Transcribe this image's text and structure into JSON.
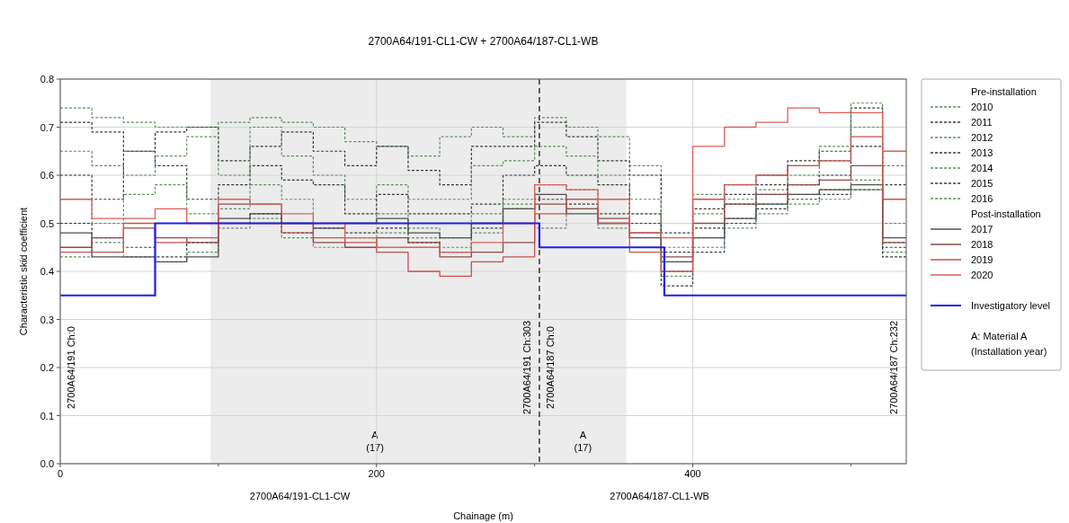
{
  "chart_data": {
    "type": "step",
    "title": "2700A64/191-CL1-CW + 2700A64/187-CL1-WB",
    "xlabel": "Chainage (m)",
    "ylabel": "Characteristic skid coefficient",
    "legend_title": "Pre-installation",
    "x": [
      0,
      20,
      40,
      60,
      80,
      100,
      120,
      140,
      160,
      180,
      200,
      220,
      240,
      260,
      280,
      300,
      320,
      340,
      360,
      380,
      400,
      420,
      440,
      460,
      480,
      500,
      520,
      535
    ],
    "xlim": [
      0,
      535
    ],
    "xticks": [
      0,
      {
        "value": 100,
        "label": null
      },
      200,
      {
        "value": 300,
        "label": null
      },
      400,
      {
        "value": 500,
        "label": null
      }
    ],
    "ylim": [
      0,
      0.8
    ],
    "yticks": [
      {
        "value": 0,
        "label": "0.0"
      },
      0.1,
      0.2,
      0.3,
      0.4,
      0.5,
      0.6,
      0.7,
      0.8
    ],
    "grid": true,
    "legend": "right",
    "series": [
      {
        "name": "2010",
        "color": "#5f8f5f",
        "line_style": "dotted",
        "values": [
          0.74,
          0.72,
          0.71,
          0.7,
          0.7,
          0.71,
          0.72,
          0.71,
          0.7,
          0.67,
          0.66,
          0.64,
          0.68,
          0.7,
          0.68,
          0.72,
          0.7,
          0.68,
          0.62,
          0.45,
          0.56,
          0.58,
          0.6,
          0.62,
          0.66,
          0.7,
          0.62,
          0.62
        ]
      },
      {
        "name": "2011",
        "color": "#3a3a3a",
        "line_style": "dotted",
        "values": [
          0.71,
          0.69,
          0.65,
          0.69,
          0.7,
          0.63,
          0.66,
          0.69,
          0.65,
          0.62,
          0.66,
          0.61,
          0.58,
          0.66,
          0.66,
          0.71,
          0.68,
          0.63,
          0.6,
          0.48,
          0.53,
          0.56,
          0.58,
          0.63,
          0.65,
          0.74,
          0.58,
          0.58
        ]
      },
      {
        "name": "2012",
        "color": "#5f8f5f",
        "line_style": "dotted",
        "values": [
          0.65,
          0.62,
          0.6,
          0.64,
          0.68,
          0.6,
          0.7,
          0.64,
          0.6,
          0.55,
          0.58,
          0.55,
          0.55,
          0.62,
          0.63,
          0.66,
          0.64,
          0.6,
          0.55,
          0.39,
          0.52,
          0.55,
          0.57,
          0.6,
          0.63,
          0.75,
          0.5,
          0.5
        ]
      },
      {
        "name": "2013",
        "color": "#3a3a3a",
        "line_style": "dotted",
        "values": [
          0.6,
          0.55,
          0.65,
          0.62,
          0.55,
          0.58,
          0.62,
          0.59,
          0.58,
          0.52,
          0.56,
          0.52,
          0.52,
          0.54,
          0.6,
          0.62,
          0.6,
          0.58,
          0.52,
          0.37,
          0.49,
          0.54,
          0.56,
          0.58,
          0.6,
          0.66,
          0.45,
          0.45
        ]
      },
      {
        "name": "2014",
        "color": "#5f8f5f",
        "line_style": "dotted",
        "values": [
          0.55,
          0.5,
          0.56,
          0.58,
          0.52,
          0.53,
          0.58,
          0.55,
          0.5,
          0.5,
          0.52,
          0.49,
          0.47,
          0.48,
          0.55,
          0.58,
          0.57,
          0.55,
          0.52,
          0.4,
          0.47,
          0.51,
          0.54,
          0.56,
          0.57,
          0.59,
          0.44,
          0.44
        ]
      },
      {
        "name": "2015",
        "color": "#3a3a3a",
        "line_style": "dotted",
        "values": [
          0.5,
          0.47,
          0.45,
          0.43,
          0.46,
          0.5,
          0.52,
          0.48,
          0.49,
          0.48,
          0.49,
          0.46,
          0.44,
          0.49,
          0.53,
          0.55,
          0.54,
          0.52,
          0.5,
          0.44,
          0.44,
          0.5,
          0.53,
          0.55,
          0.56,
          0.57,
          0.43,
          0.43
        ]
      },
      {
        "name": "2016",
        "color": "#5f8f5f",
        "line_style": "dotted",
        "values": [
          0.43,
          0.46,
          0.43,
          0.42,
          0.44,
          0.49,
          0.51,
          0.47,
          0.45,
          0.47,
          0.48,
          0.47,
          0.45,
          0.52,
          0.54,
          0.49,
          0.53,
          0.49,
          0.48,
          0.42,
          0.45,
          0.49,
          0.52,
          0.54,
          0.55,
          0.57,
          0.46,
          0.46
        ]
      },
      {
        "name": "2017",
        "color": "#505050",
        "line_style": "solid",
        "values": [
          0.48,
          0.43,
          0.43,
          0.42,
          0.43,
          0.51,
          0.52,
          0.5,
          0.49,
          0.5,
          0.51,
          0.48,
          0.47,
          0.5,
          0.53,
          0.56,
          0.52,
          0.5,
          0.47,
          0.42,
          0.47,
          0.51,
          0.54,
          0.56,
          0.57,
          0.58,
          0.47,
          0.47
        ]
      },
      {
        "name": "2018",
        "color": "#8a4b4b",
        "line_style": "solid",
        "values": [
          0.45,
          0.47,
          0.49,
          0.47,
          0.46,
          0.54,
          0.54,
          0.5,
          0.46,
          0.45,
          0.47,
          0.46,
          0.43,
          0.44,
          0.46,
          0.54,
          0.53,
          0.51,
          0.48,
          0.43,
          0.5,
          0.54,
          0.56,
          0.58,
          0.59,
          0.62,
          0.46,
          0.46
        ]
      },
      {
        "name": "2019",
        "color": "#c8504f",
        "line_style": "solid",
        "values": [
          0.44,
          0.44,
          0.5,
          0.46,
          0.47,
          0.5,
          0.5,
          0.48,
          0.47,
          0.46,
          0.44,
          0.4,
          0.39,
          0.42,
          0.43,
          0.52,
          0.55,
          0.5,
          0.44,
          0.4,
          0.55,
          0.58,
          0.6,
          0.62,
          0.63,
          0.68,
          0.55,
          0.55
        ]
      },
      {
        "name": "2020",
        "color": "#d9605a",
        "line_style": "solid",
        "values": [
          0.55,
          0.51,
          0.51,
          0.53,
          0.5,
          0.55,
          0.54,
          0.52,
          0.5,
          0.47,
          0.45,
          0.45,
          0.44,
          0.46,
          0.5,
          0.58,
          0.57,
          0.55,
          0.48,
          0.47,
          0.66,
          0.7,
          0.71,
          0.74,
          0.73,
          0.73,
          0.65,
          0.65
        ]
      },
      {
        "name": "Investigatory level",
        "color": "#1f1fe6",
        "line_style": "solid",
        "x": [
          0,
          60,
          303,
          382,
          535
        ],
        "values": [
          0.35,
          0.5,
          0.45,
          0.35,
          0.35
        ]
      }
    ],
    "bands": [
      {
        "axis": "x",
        "from": 95,
        "to": 303,
        "label": "A\n(17)",
        "color": "#ececec"
      },
      {
        "axis": "x",
        "from": 303,
        "to": 358,
        "label": "A\n(17)",
        "color": "#ececec"
      }
    ],
    "ref_lines": [
      {
        "axis": "x",
        "value": 303,
        "label": null,
        "color": "#333333",
        "line_style": "dashed"
      }
    ],
    "annotations": [
      "Post-installation",
      "A: Material A\n(Installation year)",
      "2700A64/191 Ch:0",
      "2700A64/191 Ch:303",
      "2700A64/187 Ch:0",
      "2700A64/187 Ch:232",
      "2700A64/191-CL1-CW",
      "2700A64/187-CL1-WB"
    ]
  }
}
